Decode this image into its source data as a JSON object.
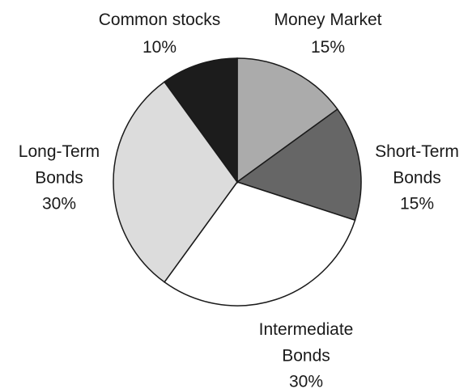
{
  "chart_data": {
    "type": "pie",
    "categories": [
      "Money Market",
      "Short-Term\nBonds",
      "Intermediate\nBonds",
      "Long-Term\nBonds",
      "Common stocks"
    ],
    "values": [
      15,
      15,
      30,
      30,
      10
    ],
    "value_labels": [
      "15%",
      "15%",
      "30%",
      "30%",
      "10%"
    ],
    "colors": [
      "#ababab",
      "#666666",
      "#ffffff",
      "#dcdcdc",
      "#1c1c1c"
    ]
  }
}
